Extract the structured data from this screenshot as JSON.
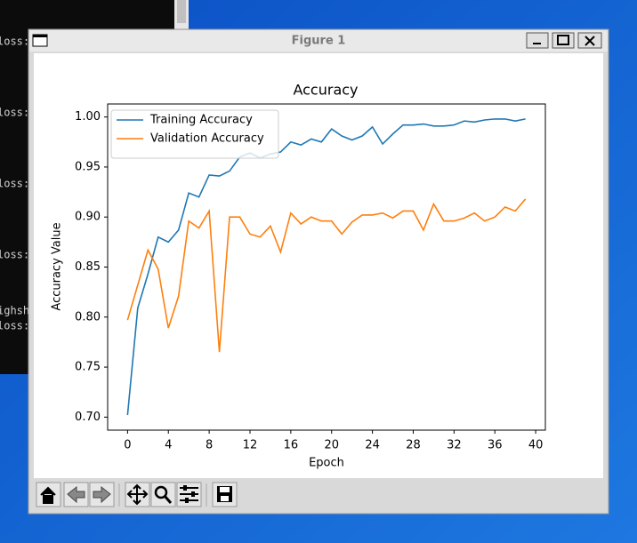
{
  "terminal": {
    "lines": [
      "loss:",
      "loss:",
      "loss:",
      "loss:",
      "ighsh",
      "loss:"
    ]
  },
  "window": {
    "title": "Figure 1"
  },
  "chart_data": {
    "type": "line",
    "title": "Accuracy",
    "x_label": "Epoch",
    "y_label": "Accuracy Value",
    "x": [
      0,
      1,
      2,
      3,
      4,
      5,
      6,
      7,
      8,
      9,
      10,
      11,
      12,
      13,
      14,
      15,
      16,
      17,
      18,
      19,
      20,
      21,
      22,
      23,
      24,
      25,
      26,
      27,
      28,
      29,
      30,
      31,
      32,
      33,
      34,
      35,
      36,
      37,
      38,
      39
    ],
    "series": [
      {
        "name": "Training Accuracy",
        "color": "#1f77b4",
        "values": [
          0.702,
          0.809,
          0.843,
          0.88,
          0.875,
          0.887,
          0.924,
          0.92,
          0.942,
          0.941,
          0.946,
          0.96,
          0.964,
          0.959,
          0.963,
          0.965,
          0.975,
          0.972,
          0.978,
          0.975,
          0.988,
          0.981,
          0.977,
          0.981,
          0.99,
          0.973,
          0.983,
          0.992,
          0.992,
          0.993,
          0.991,
          0.991,
          0.992,
          0.996,
          0.995,
          0.997,
          0.998,
          0.998,
          0.996,
          0.998
        ]
      },
      {
        "name": "Validation Accuracy",
        "color": "#ff7f0e",
        "values": [
          0.797,
          0.832,
          0.867,
          0.848,
          0.789,
          0.821,
          0.896,
          0.889,
          0.906,
          0.765,
          0.9,
          0.9,
          0.883,
          0.88,
          0.891,
          0.865,
          0.904,
          0.893,
          0.9,
          0.896,
          0.896,
          0.883,
          0.895,
          0.902,
          0.902,
          0.904,
          0.899,
          0.906,
          0.906,
          0.887,
          0.913,
          0.896,
          0.896,
          0.899,
          0.904,
          0.896,
          0.9,
          0.91,
          0.906,
          0.918
        ]
      }
    ],
    "xlim": [
      -1.95,
      40.95
    ],
    "ylim": [
      0.687,
      1.013
    ],
    "xticks": [
      0,
      4,
      8,
      12,
      16,
      20,
      24,
      28,
      32,
      36,
      40
    ],
    "yticks": [
      {
        "value": 0.7,
        "label": "0.70"
      },
      {
        "value": 0.75,
        "label": "0.75"
      },
      {
        "value": 0.8,
        "label": "0.80"
      },
      {
        "value": 0.85,
        "label": "0.85"
      },
      {
        "value": 0.9,
        "label": "0.90"
      },
      {
        "value": 0.95,
        "label": "0.95"
      },
      {
        "value": 1.0,
        "label": "1.00"
      }
    ],
    "legend": "upper left",
    "grid": false
  }
}
